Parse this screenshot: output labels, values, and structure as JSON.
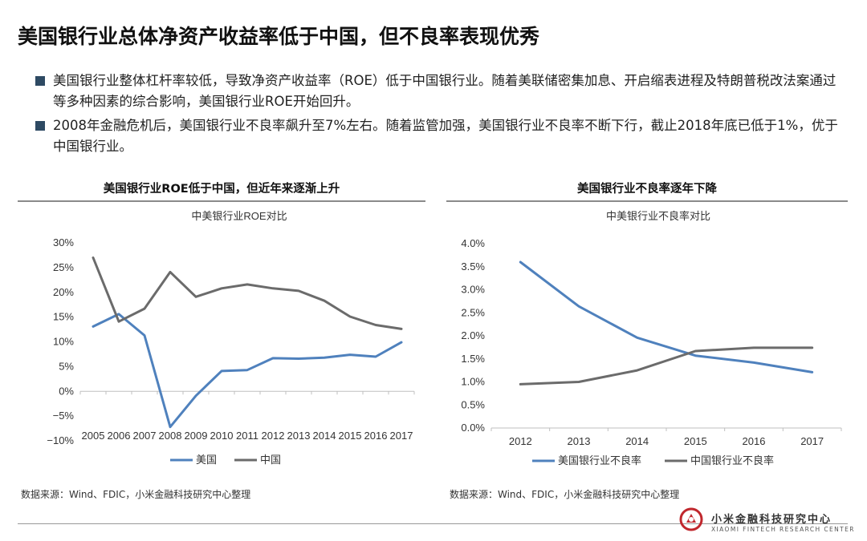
{
  "page": {
    "title": "美国银行业总体净资产收益率低于中国，但不良率表现优秀",
    "bullets": [
      "美国银行业整体杠杆率较低，导致净资产收益率（ROE）低于中国银行业。随着美联储密集加息、开启缩表进程及特朗普税改法案通过等多种因素的综合影响，美国银行业ROE开始回升。",
      "2008年金融危机后，美国银行业不良率飙升至7%左右。随着监管加强，美国银行业不良率不断下行，截止2018年底已低于1%，优于中国银行业。"
    ],
    "left_panel_title": "美国银行业ROE低于中国，但近年来逐渐上升",
    "right_panel_title": "美国银行业不良率逐年下降",
    "left_source": "数据来源：Wind、FDIC，小米金融科技研究中心整理",
    "right_source": "数据来源：Wind、FDIC，小米金融科技研究中心整理",
    "logo_cn": "小米金融科技研究中心",
    "logo_en": "XIAOMI FINTECH RESEARCH CENTER",
    "logo_icon": "xiaomi-fintech-logo",
    "colors": {
      "us": "#4f81bd",
      "china": "#6b6b6b",
      "bullet": "#2e4a63",
      "logo": "#c0272d"
    }
  },
  "chart_data": [
    {
      "type": "line",
      "title": "中美银行业ROE对比",
      "categories": [
        "2005",
        "2006",
        "2007",
        "2008",
        "2009",
        "2010",
        "2011",
        "2012",
        "2013",
        "2014",
        "2015",
        "2016",
        "2017"
      ],
      "series": [
        {
          "name": "美国",
          "values": [
            13.1,
            15.6,
            11.3,
            -7.2,
            -0.9,
            4.1,
            4.3,
            6.7,
            6.6,
            6.8,
            7.4,
            7.0,
            9.9
          ]
        },
        {
          "name": "中国",
          "values": [
            27.0,
            14.1,
            16.7,
            24.1,
            19.1,
            20.8,
            21.6,
            20.8,
            20.3,
            18.3,
            15.1,
            13.4,
            12.6
          ]
        }
      ],
      "y_ticks": [
        "30%",
        "25%",
        "20%",
        "15%",
        "10%",
        "5%",
        "0%",
        "−5%",
        "−10%"
      ],
      "ylim": [
        -10,
        30
      ],
      "legend": "bottom",
      "grid": false
    },
    {
      "type": "line",
      "title": "中美银行业不良率对比",
      "categories": [
        "2012",
        "2013",
        "2014",
        "2015",
        "2016",
        "2017"
      ],
      "series": [
        {
          "name": "美国银行业不良率",
          "values": [
            3.6,
            2.64,
            1.96,
            1.57,
            1.42,
            1.21
          ]
        },
        {
          "name": "中国银行业不良率",
          "values": [
            0.95,
            1.0,
            1.25,
            1.67,
            1.74,
            1.74
          ]
        }
      ],
      "y_ticks": [
        "4.0%",
        "3.5%",
        "3.0%",
        "2.5%",
        "2.0%",
        "1.5%",
        "1.0%",
        "0.5%",
        "0.0%"
      ],
      "ylim": [
        0,
        4
      ],
      "legend": "bottom",
      "grid": false
    }
  ]
}
